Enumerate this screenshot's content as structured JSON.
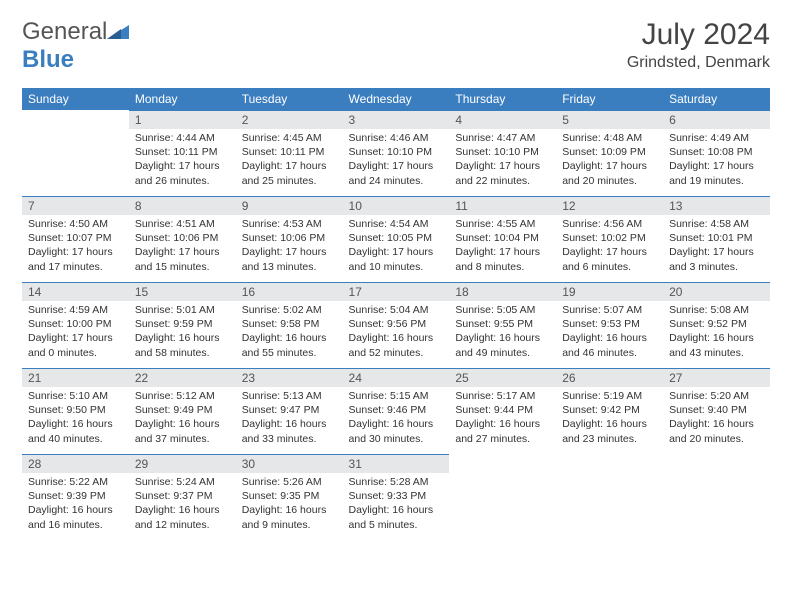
{
  "logo": {
    "text1": "General",
    "text2": "Blue"
  },
  "title": "July 2024",
  "location": "Grindsted, Denmark",
  "colors": {
    "header_bg": "#3b7ec0",
    "daynum_bg": "#e5e7e9",
    "text": "#333333"
  },
  "weekdays": [
    "Sunday",
    "Monday",
    "Tuesday",
    "Wednesday",
    "Thursday",
    "Friday",
    "Saturday"
  ],
  "days": [
    null,
    {
      "n": "1",
      "sr": "4:44 AM",
      "ss": "10:11 PM",
      "dl": "17 hours and 26 minutes."
    },
    {
      "n": "2",
      "sr": "4:45 AM",
      "ss": "10:11 PM",
      "dl": "17 hours and 25 minutes."
    },
    {
      "n": "3",
      "sr": "4:46 AM",
      "ss": "10:10 PM",
      "dl": "17 hours and 24 minutes."
    },
    {
      "n": "4",
      "sr": "4:47 AM",
      "ss": "10:10 PM",
      "dl": "17 hours and 22 minutes."
    },
    {
      "n": "5",
      "sr": "4:48 AM",
      "ss": "10:09 PM",
      "dl": "17 hours and 20 minutes."
    },
    {
      "n": "6",
      "sr": "4:49 AM",
      "ss": "10:08 PM",
      "dl": "17 hours and 19 minutes."
    },
    {
      "n": "7",
      "sr": "4:50 AM",
      "ss": "10:07 PM",
      "dl": "17 hours and 17 minutes."
    },
    {
      "n": "8",
      "sr": "4:51 AM",
      "ss": "10:06 PM",
      "dl": "17 hours and 15 minutes."
    },
    {
      "n": "9",
      "sr": "4:53 AM",
      "ss": "10:06 PM",
      "dl": "17 hours and 13 minutes."
    },
    {
      "n": "10",
      "sr": "4:54 AM",
      "ss": "10:05 PM",
      "dl": "17 hours and 10 minutes."
    },
    {
      "n": "11",
      "sr": "4:55 AM",
      "ss": "10:04 PM",
      "dl": "17 hours and 8 minutes."
    },
    {
      "n": "12",
      "sr": "4:56 AM",
      "ss": "10:02 PM",
      "dl": "17 hours and 6 minutes."
    },
    {
      "n": "13",
      "sr": "4:58 AM",
      "ss": "10:01 PM",
      "dl": "17 hours and 3 minutes."
    },
    {
      "n": "14",
      "sr": "4:59 AM",
      "ss": "10:00 PM",
      "dl": "17 hours and 0 minutes."
    },
    {
      "n": "15",
      "sr": "5:01 AM",
      "ss": "9:59 PM",
      "dl": "16 hours and 58 minutes."
    },
    {
      "n": "16",
      "sr": "5:02 AM",
      "ss": "9:58 PM",
      "dl": "16 hours and 55 minutes."
    },
    {
      "n": "17",
      "sr": "5:04 AM",
      "ss": "9:56 PM",
      "dl": "16 hours and 52 minutes."
    },
    {
      "n": "18",
      "sr": "5:05 AM",
      "ss": "9:55 PM",
      "dl": "16 hours and 49 minutes."
    },
    {
      "n": "19",
      "sr": "5:07 AM",
      "ss": "9:53 PM",
      "dl": "16 hours and 46 minutes."
    },
    {
      "n": "20",
      "sr": "5:08 AM",
      "ss": "9:52 PM",
      "dl": "16 hours and 43 minutes."
    },
    {
      "n": "21",
      "sr": "5:10 AM",
      "ss": "9:50 PM",
      "dl": "16 hours and 40 minutes."
    },
    {
      "n": "22",
      "sr": "5:12 AM",
      "ss": "9:49 PM",
      "dl": "16 hours and 37 minutes."
    },
    {
      "n": "23",
      "sr": "5:13 AM",
      "ss": "9:47 PM",
      "dl": "16 hours and 33 minutes."
    },
    {
      "n": "24",
      "sr": "5:15 AM",
      "ss": "9:46 PM",
      "dl": "16 hours and 30 minutes."
    },
    {
      "n": "25",
      "sr": "5:17 AM",
      "ss": "9:44 PM",
      "dl": "16 hours and 27 minutes."
    },
    {
      "n": "26",
      "sr": "5:19 AM",
      "ss": "9:42 PM",
      "dl": "16 hours and 23 minutes."
    },
    {
      "n": "27",
      "sr": "5:20 AM",
      "ss": "9:40 PM",
      "dl": "16 hours and 20 minutes."
    },
    {
      "n": "28",
      "sr": "5:22 AM",
      "ss": "9:39 PM",
      "dl": "16 hours and 16 minutes."
    },
    {
      "n": "29",
      "sr": "5:24 AM",
      "ss": "9:37 PM",
      "dl": "16 hours and 12 minutes."
    },
    {
      "n": "30",
      "sr": "5:26 AM",
      "ss": "9:35 PM",
      "dl": "16 hours and 9 minutes."
    },
    {
      "n": "31",
      "sr": "5:28 AM",
      "ss": "9:33 PM",
      "dl": "16 hours and 5 minutes."
    },
    null,
    null,
    null
  ]
}
